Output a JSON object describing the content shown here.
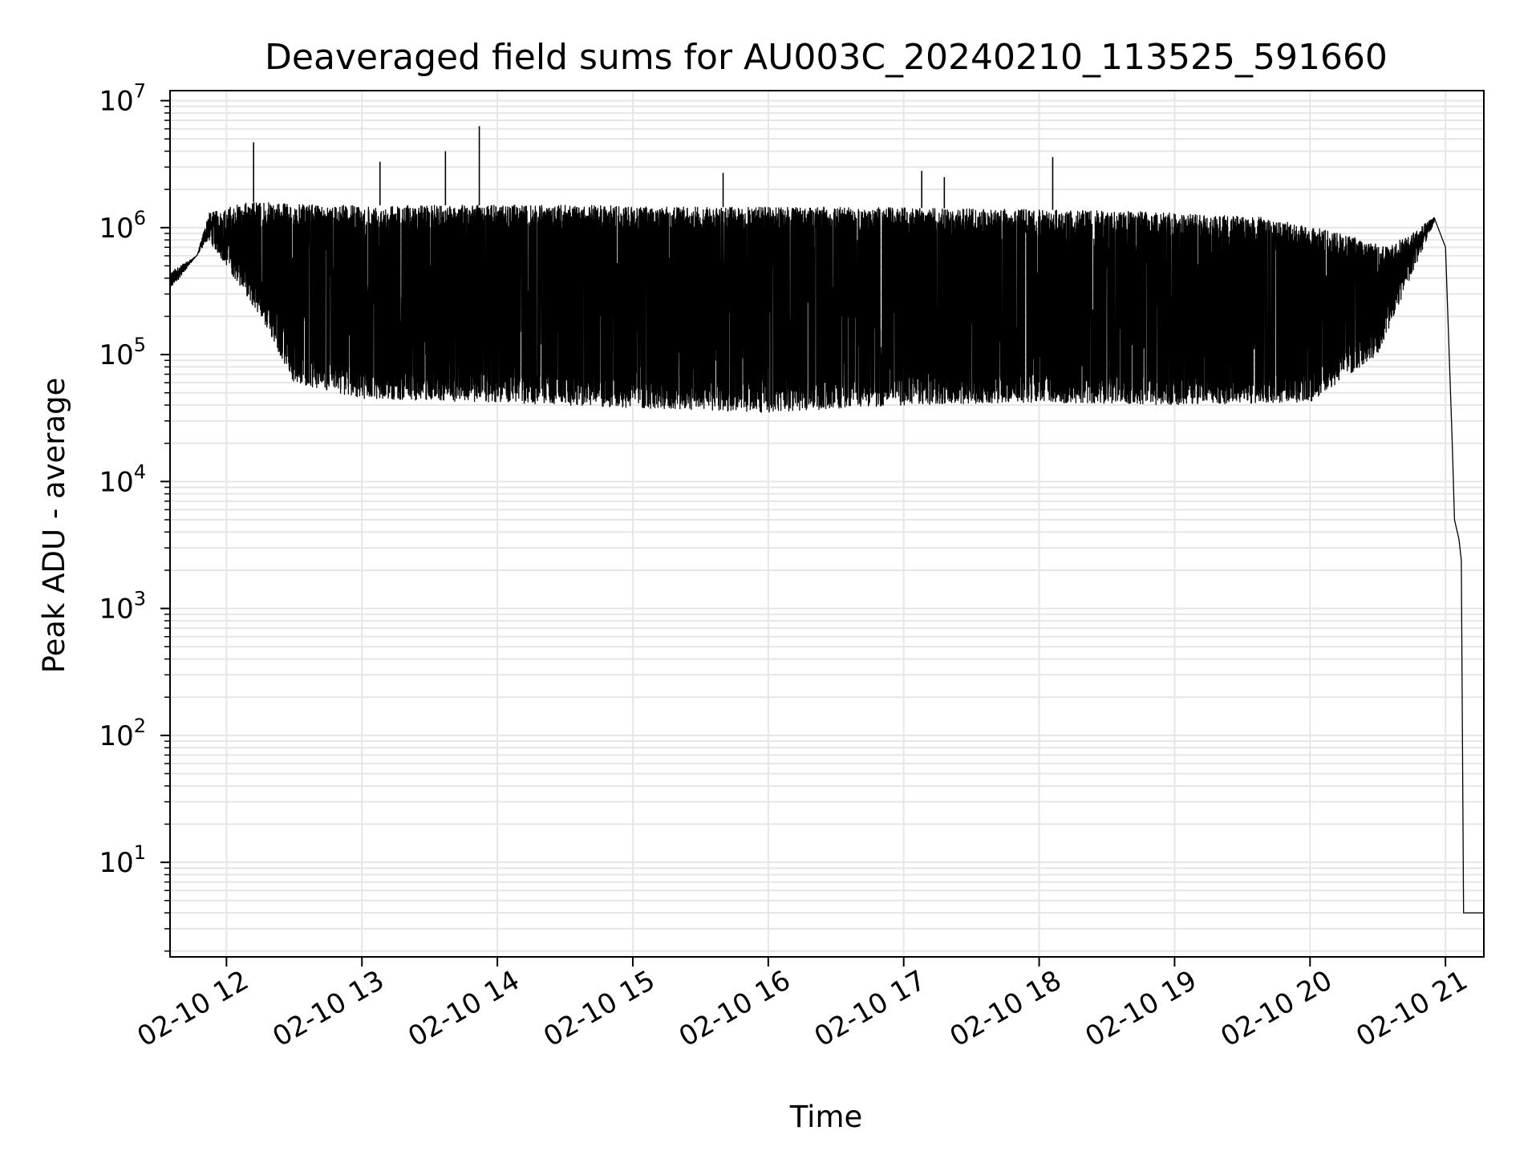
{
  "chart_data": {
    "type": "line",
    "title": "Deaveraged field sums for AU003C_20240210_113525_591660",
    "xlabel": "Time",
    "ylabel": "Peak ADU - average",
    "yscale": "log",
    "ylim": [
      1.8,
      12000000
    ],
    "xlim": [
      "2024-02-10 11:35",
      "2024-02-10 21:17"
    ],
    "grid": true,
    "legend": "none",
    "line_color": "#000000",
    "grid_color": "#e6e6e6",
    "x_ticks": [
      {
        "label": "02-10 12",
        "t": "2024-02-10 12:00"
      },
      {
        "label": "02-10 13",
        "t": "2024-02-10 13:00"
      },
      {
        "label": "02-10 14",
        "t": "2024-02-10 14:00"
      },
      {
        "label": "02-10 15",
        "t": "2024-02-10 15:00"
      },
      {
        "label": "02-10 16",
        "t": "2024-02-10 16:00"
      },
      {
        "label": "02-10 17",
        "t": "2024-02-10 17:00"
      },
      {
        "label": "02-10 18",
        "t": "2024-02-10 18:00"
      },
      {
        "label": "02-10 19",
        "t": "2024-02-10 19:00"
      },
      {
        "label": "02-10 20",
        "t": "2024-02-10 20:00"
      },
      {
        "label": "02-10 21",
        "t": "2024-02-10 21:00"
      }
    ],
    "y_ticks": [
      {
        "base": "10",
        "exp": "1",
        "value": 10
      },
      {
        "base": "10",
        "exp": "2",
        "value": 100
      },
      {
        "base": "10",
        "exp": "3",
        "value": 1000
      },
      {
        "base": "10",
        "exp": "4",
        "value": 10000
      },
      {
        "base": "10",
        "exp": "5",
        "value": 100000
      },
      {
        "base": "10",
        "exp": "6",
        "value": 1000000
      },
      {
        "base": "10",
        "exp": "7",
        "value": 10000000
      }
    ],
    "series": [
      {
        "values_summary": "Approximate envelope of the noisy trace",
        "upper_envelope": [
          [
            "2024-02-10 11:35",
            450000
          ],
          [
            "2024-02-10 11:47",
            600000
          ],
          [
            "2024-02-10 11:52",
            1300000
          ],
          [
            "2024-02-10 12:10",
            1600000
          ],
          [
            "2024-02-10 12:40",
            1500000
          ],
          [
            "2024-02-10 13:30",
            1500000
          ],
          [
            "2024-02-10 14:40",
            1500000
          ],
          [
            "2024-02-10 15:40",
            1450000
          ],
          [
            "2024-02-10 16:40",
            1450000
          ],
          [
            "2024-02-10 17:40",
            1400000
          ],
          [
            "2024-02-10 18:40",
            1350000
          ],
          [
            "2024-02-10 19:40",
            1200000
          ],
          [
            "2024-02-10 20:15",
            900000
          ],
          [
            "2024-02-10 20:35",
            700000
          ],
          [
            "2024-02-10 20:55",
            1200000
          ]
        ],
        "lower_envelope": [
          [
            "2024-02-10 11:35",
            320000
          ],
          [
            "2024-02-10 11:52",
            800000
          ],
          [
            "2024-02-10 12:15",
            200000
          ],
          [
            "2024-02-10 12:30",
            60000
          ],
          [
            "2024-02-10 13:00",
            45000
          ],
          [
            "2024-02-10 14:00",
            42000
          ],
          [
            "2024-02-10 15:00",
            38000
          ],
          [
            "2024-02-10 16:00",
            35000
          ],
          [
            "2024-02-10 17:00",
            40000
          ],
          [
            "2024-02-10 18:00",
            42000
          ],
          [
            "2024-02-10 19:00",
            40000
          ],
          [
            "2024-02-10 20:00",
            42000
          ],
          [
            "2024-02-10 20:30",
            100000
          ],
          [
            "2024-02-10 20:55",
            1100000
          ]
        ],
        "spikes": [
          [
            "2024-02-10 12:12",
            4700000
          ],
          [
            "2024-02-10 13:08",
            3300000
          ],
          [
            "2024-02-10 13:37",
            4000000
          ],
          [
            "2024-02-10 13:52",
            6300000
          ],
          [
            "2024-02-10 15:40",
            2700000
          ],
          [
            "2024-02-10 17:08",
            2800000
          ],
          [
            "2024-02-10 17:18",
            2500000
          ],
          [
            "2024-02-10 18:06",
            3600000
          ]
        ],
        "tail": [
          [
            "2024-02-10 20:55",
            1200000
          ],
          [
            "2024-02-10 21:00",
            700000
          ],
          [
            "2024-02-10 21:03",
            20000
          ],
          [
            "2024-02-10 21:04",
            5000
          ],
          [
            "2024-02-10 21:06",
            3500
          ],
          [
            "2024-02-10 21:07",
            2400
          ],
          [
            "2024-02-10 21:08",
            4
          ],
          [
            "2024-02-10 21:17",
            4
          ]
        ]
      }
    ]
  }
}
